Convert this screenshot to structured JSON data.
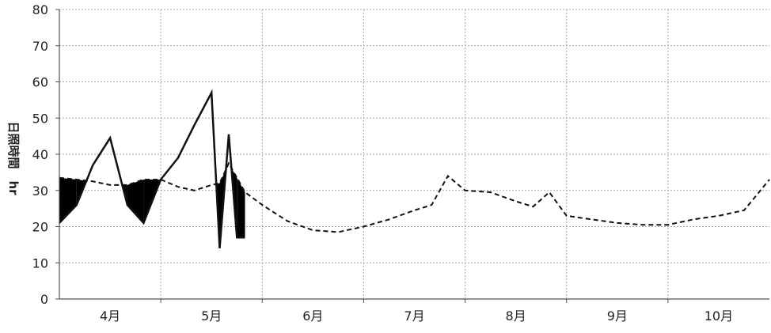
{
  "chart_data": {
    "type": "line",
    "title": "",
    "xlabel": "",
    "ylabel": "日照時間　hr",
    "ylim": [
      0,
      80
    ],
    "yticks": [
      0,
      10,
      20,
      30,
      40,
      50,
      60,
      70,
      80
    ],
    "xlim": [
      0,
      7
    ],
    "x_unit": "month index (0 = start of April)",
    "categories": [
      "4月",
      "5月",
      "6月",
      "7月",
      "8月",
      "9月",
      "10月"
    ],
    "grid": true,
    "legend": "none",
    "colors": {
      "line": "#111111",
      "grid": "#a8a8a8",
      "axis": "#555555"
    },
    "series": [
      {
        "style": "solid",
        "x": [
          0,
          0.17,
          0.33,
          0.5,
          0.67,
          0.83,
          1.0,
          1.17,
          1.33,
          1.5,
          1.58,
          1.67,
          1.75,
          1.83
        ],
        "values": [
          21,
          26,
          37,
          44.5,
          26,
          21,
          33,
          39,
          48,
          57,
          14,
          45.5,
          17,
          17
        ]
      },
      {
        "style": "dashed",
        "x": [
          0,
          0.17,
          0.33,
          0.5,
          0.67,
          0.83,
          1.0,
          1.17,
          1.33,
          1.5,
          1.58,
          1.67,
          1.75,
          1.83,
          2.0,
          2.25,
          2.5,
          2.75,
          3.0,
          3.25,
          3.5,
          3.67,
          3.83,
          4.0,
          4.25,
          4.5,
          4.67,
          4.83,
          5.0,
          5.25,
          5.5,
          5.75,
          6.0,
          6.25,
          6.5,
          6.75,
          7.0
        ],
        "values": [
          33.5,
          33,
          32.5,
          31.5,
          31.5,
          33,
          33,
          31,
          30,
          31.5,
          32,
          37.5,
          33.5,
          29.5,
          26,
          21.5,
          19,
          18.5,
          20,
          22,
          24.5,
          26,
          34,
          30,
          29.5,
          27,
          25.5,
          29.5,
          23,
          22,
          21,
          20.5,
          20.5,
          22,
          23,
          24.5,
          33
        ]
      }
    ]
  }
}
